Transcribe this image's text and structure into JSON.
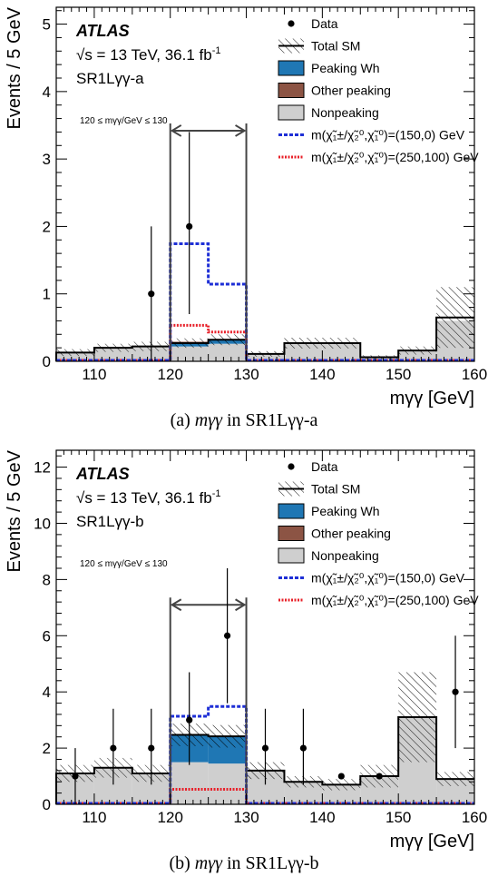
{
  "chart_data": [
    {
      "type": "bar",
      "panel": "a",
      "caption_prefix": "(a) ",
      "caption_math": "mγγ",
      "caption_suffix": " in SR1Lγγ-a",
      "experiment": "ATLAS",
      "energy_label": "√s = 13 TeV, 36.1 fb",
      "energy_sup": "-1",
      "region_label": "SR1Lγγ-a",
      "window_label": "120 ≤ mγγ/GeV ≤ 130",
      "xlabel": "mγγ [GeV]",
      "ylabel": "Events /  5 GeV",
      "xlim": [
        105,
        160
      ],
      "ylim": [
        0,
        5.25
      ],
      "yticks": [
        0,
        1,
        2,
        3,
        4,
        5
      ],
      "xticks": [
        110,
        120,
        130,
        140,
        150,
        160
      ],
      "bin_edges": [
        105,
        110,
        115,
        120,
        125,
        130,
        135,
        140,
        145,
        150,
        155,
        160
      ],
      "nonpeaking": [
        0.13,
        0.2,
        0.22,
        0.22,
        0.26,
        0.1,
        0.26,
        0.26,
        0.05,
        0.15,
        0.6
      ],
      "peaking_wh": [
        0,
        0,
        0,
        0.05,
        0.05,
        0,
        0,
        0,
        0,
        0,
        0
      ],
      "other_peaking": [
        0,
        0,
        0,
        0.02,
        0.02,
        0,
        0,
        0,
        0,
        0,
        0
      ],
      "total_sm": [
        0.13,
        0.2,
        0.22,
        0.27,
        0.32,
        0.11,
        0.27,
        0.27,
        0.06,
        0.16,
        0.65
      ],
      "total_sm_unc": [
        0.05,
        0.06,
        0.07,
        0.07,
        0.08,
        0.04,
        0.08,
        0.08,
        0.03,
        0.06,
        0.45
      ],
      "signal_150_0": [
        0,
        0,
        0,
        1.73,
        1.13,
        0,
        0,
        0,
        0,
        0,
        0
      ],
      "signal_250_100": [
        0,
        0,
        0,
        0.52,
        0.42,
        0,
        0,
        0,
        0,
        0,
        0
      ],
      "data": [
        {
          "x": 117.5,
          "y": 1,
          "err": [
            1,
            1
          ]
        },
        {
          "x": 122.5,
          "y": 2,
          "err": [
            1.3,
            1.4
          ]
        }
      ],
      "window": [
        120,
        130
      ],
      "window_arrow_y": 3.42,
      "legend": [
        {
          "label": "Data",
          "style": "data"
        },
        {
          "label": "Total SM",
          "style": "hatch"
        },
        {
          "label": "Peaking Wh",
          "style": "fill",
          "color": "#1f77b4"
        },
        {
          "label": "Other peaking",
          "style": "fill",
          "color": "#8c5444"
        },
        {
          "label": "Nonpeaking",
          "style": "fill",
          "color": "#cfcfcf"
        },
        {
          "label": "m(χ̃₁±/χ̃₂⁰,χ̃₁⁰)=(150,0) GeV",
          "style": "dash-blue"
        },
        {
          "label": "m(χ̃₁±/χ̃₂⁰,χ̃₁⁰)=(250,100) GeV",
          "style": "dash-red"
        }
      ]
    },
    {
      "type": "bar",
      "panel": "b",
      "caption_prefix": "(b) ",
      "caption_math": "mγγ",
      "caption_suffix": " in SR1Lγγ-b",
      "experiment": "ATLAS",
      "energy_label": "√s = 13 TeV, 36.1 fb",
      "energy_sup": "-1",
      "region_label": "SR1Lγγ-b",
      "window_label": "120 ≤ mγγ/GeV ≤ 130",
      "xlabel": "mγγ [GeV]",
      "ylabel": "Events /  5 GeV",
      "xlim": [
        105,
        160
      ],
      "ylim": [
        0,
        12.6
      ],
      "yticks": [
        0,
        2,
        4,
        6,
        8,
        10,
        12
      ],
      "xticks": [
        110,
        120,
        130,
        140,
        150,
        160
      ],
      "bin_edges": [
        105,
        110,
        115,
        120,
        125,
        130,
        135,
        140,
        145,
        150,
        155,
        160
      ],
      "nonpeaking": [
        1.1,
        1.3,
        1.1,
        1.5,
        1.45,
        1.2,
        0.8,
        0.7,
        1.0,
        3.1,
        0.9
      ],
      "peaking_wh": [
        0,
        0,
        0,
        0.95,
        0.95,
        0,
        0,
        0,
        0,
        0,
        0
      ],
      "other_peaking": [
        0,
        0,
        0,
        0.02,
        0.02,
        0,
        0,
        0,
        0,
        0,
        0
      ],
      "total_sm": [
        1.1,
        1.3,
        1.1,
        2.47,
        2.42,
        1.2,
        0.8,
        0.7,
        1.0,
        3.1,
        0.9
      ],
      "total_sm_unc": [
        0.3,
        0.35,
        0.3,
        0.4,
        0.4,
        0.3,
        0.2,
        0.2,
        0.4,
        1.6,
        0.25
      ],
      "signal_150_0": [
        0,
        0,
        0,
        3.1,
        3.45,
        0,
        0,
        0,
        0,
        0,
        0
      ],
      "signal_250_100": [
        0,
        0,
        0,
        0.5,
        0.5,
        0,
        0,
        0,
        0,
        0,
        0
      ],
      "data": [
        {
          "x": 107.5,
          "y": 1,
          "err": [
            1,
            1
          ]
        },
        {
          "x": 112.5,
          "y": 2,
          "err": [
            1.3,
            1.4
          ]
        },
        {
          "x": 117.5,
          "y": 2,
          "err": [
            1.3,
            1.4
          ]
        },
        {
          "x": 122.5,
          "y": 3,
          "err": [
            1.6,
            1.7
          ]
        },
        {
          "x": 127.5,
          "y": 6,
          "err": [
            2.4,
            2.4
          ]
        },
        {
          "x": 132.5,
          "y": 2,
          "err": [
            1.3,
            1.4
          ]
        },
        {
          "x": 137.5,
          "y": 2,
          "err": [
            1.3,
            1.4
          ]
        },
        {
          "x": 142.5,
          "y": 1,
          "err": [
            0,
            0
          ]
        },
        {
          "x": 147.5,
          "y": 1,
          "err": [
            0,
            0
          ]
        },
        {
          "x": 157.5,
          "y": 4,
          "err": [
            2,
            2
          ]
        }
      ],
      "window": [
        120,
        130
      ],
      "window_arrow_y": 7.1,
      "legend": [
        {
          "label": "Data",
          "style": "data"
        },
        {
          "label": "Total SM",
          "style": "hatch"
        },
        {
          "label": "Peaking Wh",
          "style": "fill",
          "color": "#1f77b4"
        },
        {
          "label": "Other peaking",
          "style": "fill",
          "color": "#8c5444"
        },
        {
          "label": "Nonpeaking",
          "style": "fill",
          "color": "#cfcfcf"
        },
        {
          "label": "m(χ̃₁±/χ̃₂⁰,χ̃₁⁰)=(150,0) GeV",
          "style": "dash-blue"
        },
        {
          "label": "m(χ̃₁±/χ̃₂⁰,χ̃₁⁰)=(250,100) GeV",
          "style": "dash-red"
        }
      ]
    }
  ]
}
